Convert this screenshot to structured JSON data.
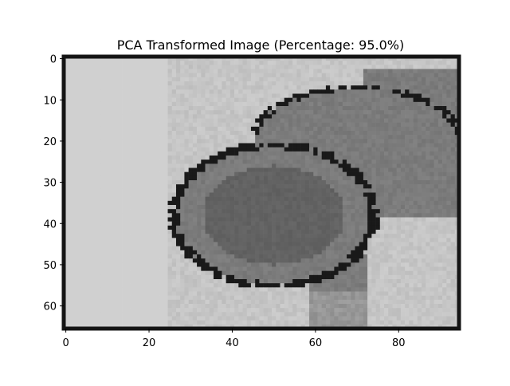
{
  "chart_data": {
    "type": "heatmap",
    "title": "PCA Transformed Image (Percentage: 95.0%)",
    "xlabel": "",
    "ylabel": "",
    "colormap": "gray",
    "image_shape": [
      66,
      95
    ],
    "xlim": [
      -0.5,
      94.5
    ],
    "ylim": [
      65.5,
      -0.5
    ],
    "x_ticks": [
      0,
      20,
      40,
      60,
      80
    ],
    "y_ticks": [
      0,
      10,
      20,
      30,
      40,
      50,
      60
    ],
    "grid": false,
    "legend": "none",
    "colors": {
      "background": "#d0d0d0",
      "center_gray": "#626262",
      "mid_gray": "#7b7b7b",
      "light_region": "#c5c5c5",
      "edge_dark": "#141414",
      "border": "#141414"
    },
    "description_values": {
      "main_blob": {
        "cx": 50,
        "cy": 38,
        "rx": 24,
        "ry": 17
      },
      "upper_lobe": {
        "cx": 70,
        "cy": 20,
        "rx": 25,
        "ry": 13
      },
      "right_band": {
        "x0": 72,
        "x1": 94,
        "y0": 3,
        "y1": 38
      },
      "neck": {
        "x0": 59,
        "x1": 72,
        "y0": 48,
        "y1": 66
      }
    }
  }
}
